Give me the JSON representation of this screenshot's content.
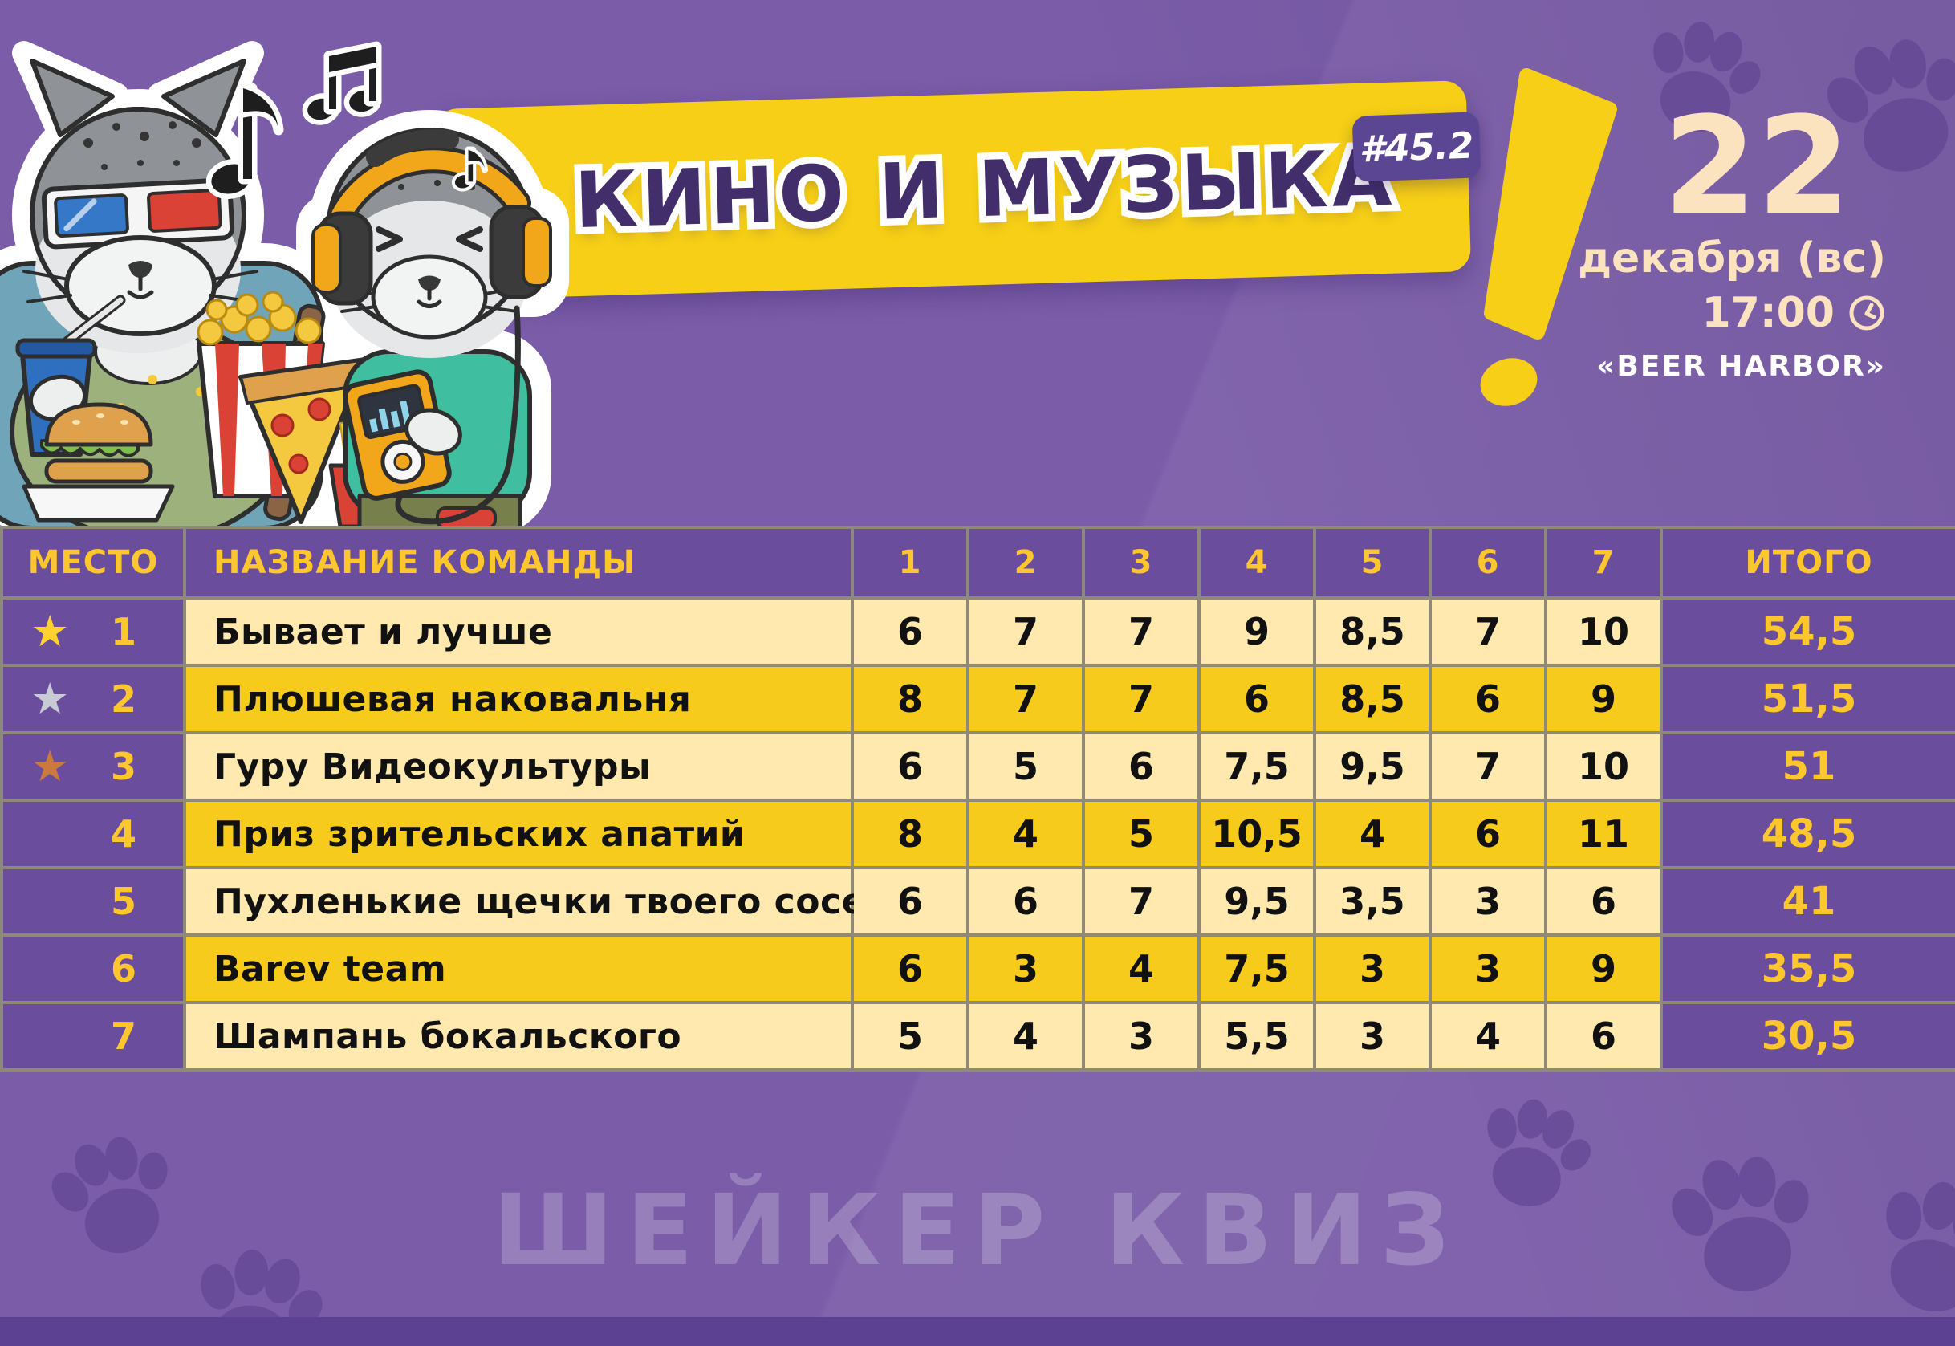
{
  "event": {
    "badge": "#45.2",
    "title": "КИНО И МУЗЫКА",
    "day": "22",
    "date_line": "декабря (вс)",
    "time": "17:00",
    "venue": "«BEER HARBOR»"
  },
  "watermark": "ШЕЙКЕР КВИЗ",
  "icons": {
    "star": "★",
    "clock": "clock-icon",
    "paw": "paw-print-icon"
  },
  "colors": {
    "background": "#7A5CA8",
    "panel_purple": "#6A4D9D",
    "row_light": "#FFE9AE",
    "row_dark": "#F7CB1B",
    "banner_yellow": "#F6CF16",
    "accent_yellow": "#FDC62C",
    "title_purple": "#412E6B",
    "date_cream": "#FBE3C0",
    "venue_white": "#FFFFFF",
    "medal_gold": "#FFD232",
    "medal_silver": "#C9CBD4",
    "medal_bronze": "#C97A3C",
    "paw_purple": "#5A3E8E"
  },
  "table": {
    "header": {
      "place": "МЕСТО",
      "team": "НАЗВАНИЕ КОМАНДЫ",
      "rounds": [
        "1",
        "2",
        "3",
        "4",
        "5",
        "6",
        "7"
      ],
      "total": "ИТОГО"
    },
    "rows": [
      {
        "place": "1",
        "medal": "gold",
        "team": "Бывает и лучше",
        "scores": [
          "6",
          "7",
          "7",
          "9",
          "8,5",
          "7",
          "10"
        ],
        "total": "54,5"
      },
      {
        "place": "2",
        "medal": "silver",
        "team": "Плюшевая наковальня",
        "scores": [
          "8",
          "7",
          "7",
          "6",
          "8,5",
          "6",
          "9"
        ],
        "total": "51,5"
      },
      {
        "place": "3",
        "medal": "bronze",
        "team": "Гуру Видеокультуры",
        "scores": [
          "6",
          "5",
          "6",
          "7,5",
          "9,5",
          "7",
          "10"
        ],
        "total": "51"
      },
      {
        "place": "4",
        "medal": null,
        "team": "Приз зрительских апатий",
        "scores": [
          "8",
          "4",
          "5",
          "10,5",
          "4",
          "6",
          "11"
        ],
        "total": "48,5"
      },
      {
        "place": "5",
        "medal": null,
        "team": "Пухленькие щечки твоего соседа",
        "scores": [
          "6",
          "6",
          "7",
          "9,5",
          "3,5",
          "3",
          "6"
        ],
        "total": "41"
      },
      {
        "place": "6",
        "medal": null,
        "team": "Barev team",
        "scores": [
          "6",
          "3",
          "4",
          "7,5",
          "3",
          "3",
          "9"
        ],
        "total": "35,5"
      },
      {
        "place": "7",
        "medal": null,
        "team": "Шампань бокальского",
        "scores": [
          "5",
          "4",
          "3",
          "5,5",
          "3",
          "4",
          "6"
        ],
        "total": "30,5"
      }
    ]
  }
}
